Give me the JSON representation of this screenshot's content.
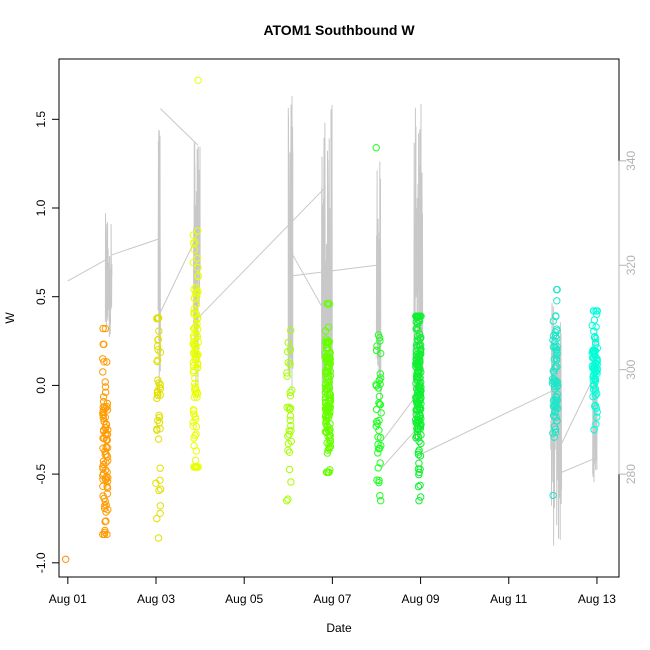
{
  "chart_data": {
    "type": "scatter",
    "title": "ATOM1 Southbound W",
    "xlabel": "Date",
    "ylabel": "W",
    "x_ticks": [
      {
        "day": 1,
        "label": "Aug 01"
      },
      {
        "day": 3,
        "label": "Aug 03"
      },
      {
        "day": 5,
        "label": "Aug 05"
      },
      {
        "day": 7,
        "label": "Aug 07"
      },
      {
        "day": 9,
        "label": "Aug 09"
      },
      {
        "day": 11,
        "label": "Aug 11"
      },
      {
        "day": 13,
        "label": "Aug 13"
      }
    ],
    "xlim": [
      0.8,
      13.5
    ],
    "ylim": [
      -1.08,
      1.84
    ],
    "y_ticks": [
      {
        "value": -1.0,
        "label": "-1.0"
      },
      {
        "value": -0.5,
        "label": "-0.5"
      },
      {
        "value": 0.0,
        "label": "0.0"
      },
      {
        "value": 0.5,
        "label": "0.5"
      },
      {
        "value": 1.0,
        "label": "1.0"
      },
      {
        "value": 1.5,
        "label": "1.5"
      }
    ],
    "y2lim": [
      260.3,
      359.5
    ],
    "y2_ticks": [
      {
        "value": 280,
        "label": "280"
      },
      {
        "value": 300,
        "label": "300"
      },
      {
        "value": 320,
        "label": "320"
      },
      {
        "value": 340,
        "label": "340"
      }
    ],
    "line_color": "#c8c8c8",
    "point_clusters": [
      {
        "x": 1.0,
        "center": -0.98,
        "sd": 0.0,
        "ymin": -0.98,
        "ymax": -0.98,
        "n": 1,
        "color": "#ff8c00"
      },
      {
        "x": 1.85,
        "center": -0.3,
        "sd": 0.26,
        "ymin": -0.84,
        "ymax": 0.32,
        "n": 85,
        "color": "#ff9a00"
      },
      {
        "x": 3.05,
        "center": -0.12,
        "sd": 0.28,
        "ymin": -0.86,
        "ymax": 0.38,
        "n": 40,
        "color": "#e0e000"
      },
      {
        "x": 3.9,
        "center": 0.1,
        "sd": 0.32,
        "ymin": -0.46,
        "ymax": 1.72,
        "n": 90,
        "color": "#e8ff00"
      },
      {
        "x": 6.02,
        "center": -0.15,
        "sd": 0.24,
        "ymin": -0.65,
        "ymax": 0.31,
        "n": 30,
        "color": "#a6ff00"
      },
      {
        "x": 6.9,
        "center": -0.05,
        "sd": 0.2,
        "ymin": -0.49,
        "ymax": 0.46,
        "n": 140,
        "color": "#66ff00"
      },
      {
        "x": 8.05,
        "center": -0.15,
        "sd": 0.26,
        "ymin": -0.65,
        "ymax": 1.34,
        "n": 40,
        "color": "#20ff20"
      },
      {
        "x": 8.95,
        "center": -0.05,
        "sd": 0.25,
        "ymin": -0.65,
        "ymax": 0.39,
        "n": 160,
        "color": "#10f030"
      },
      {
        "x": 12.05,
        "center": 0.05,
        "sd": 0.2,
        "ymin": -0.62,
        "ymax": 0.54,
        "n": 70,
        "color": "#1ee6c8"
      },
      {
        "x": 12.95,
        "center": 0.12,
        "sd": 0.15,
        "ymin": -0.25,
        "ymax": 0.42,
        "n": 70,
        "color": "#00ffd8"
      }
    ],
    "line_segments": [
      {
        "x0": 1.0,
        "y0": 317,
        "x1": 1.85,
        "y1": 321
      },
      {
        "x0": 1.85,
        "y0": 305,
        "x1": 2.0,
        "y1": 324,
        "oscillate": true,
        "ymin": 305,
        "ymax": 330
      },
      {
        "x0": 2.0,
        "y0": 322,
        "x1": 3.05,
        "y1": 325
      },
      {
        "x0": 3.05,
        "y0": 300,
        "x1": 3.1,
        "y1": 350,
        "oscillate": true,
        "ymin": 296,
        "ymax": 350
      },
      {
        "x0": 3.1,
        "y0": 350,
        "x1": 3.95,
        "y1": 343
      },
      {
        "x0": 3.1,
        "y0": 311,
        "x1": 3.95,
        "y1": 326
      },
      {
        "x0": 3.85,
        "y0": 300,
        "x1": 4.0,
        "y1": 340,
        "oscillate": true,
        "ymin": 296,
        "ymax": 344
      },
      {
        "x0": 3.85,
        "y0": 309,
        "x1": 6.85,
        "y1": 335
      },
      {
        "x0": 6.0,
        "y0": 300,
        "x1": 6.1,
        "y1": 350,
        "oscillate": true,
        "ymin": 296,
        "ymax": 353
      },
      {
        "x0": 6.1,
        "y0": 318,
        "x1": 8.0,
        "y1": 320
      },
      {
        "x0": 6.1,
        "y0": 322,
        "x1": 6.9,
        "y1": 310
      },
      {
        "x0": 6.75,
        "y0": 295,
        "x1": 7.0,
        "y1": 350,
        "oscillate": true,
        "ymin": 290,
        "ymax": 352
      },
      {
        "x0": 8.0,
        "y0": 290,
        "x1": 8.1,
        "y1": 340,
        "oscillate": true,
        "ymin": 288,
        "ymax": 342
      },
      {
        "x0": 8.1,
        "y0": 281,
        "x1": 9.05,
        "y1": 290
      },
      {
        "x0": 8.1,
        "y0": 286,
        "x1": 8.9,
        "y1": 295
      },
      {
        "x0": 8.85,
        "y0": 290,
        "x1": 9.05,
        "y1": 350,
        "oscillate": true,
        "ymin": 286,
        "ymax": 351
      },
      {
        "x0": 9.05,
        "y0": 284,
        "x1": 12.0,
        "y1": 296
      },
      {
        "x0": 11.95,
        "y0": 280,
        "x1": 12.2,
        "y1": 310,
        "oscillate": true,
        "ymin": 266,
        "ymax": 313
      },
      {
        "x0": 12.15,
        "y0": 285,
        "x1": 12.95,
        "y1": 299
      },
      {
        "x0": 12.1,
        "y0": 280,
        "x1": 12.95,
        "y1": 283
      },
      {
        "x0": 12.9,
        "y0": 279,
        "x1": 13.0,
        "y1": 305,
        "oscillate": true,
        "ymin": 278,
        "ymax": 309
      }
    ]
  }
}
